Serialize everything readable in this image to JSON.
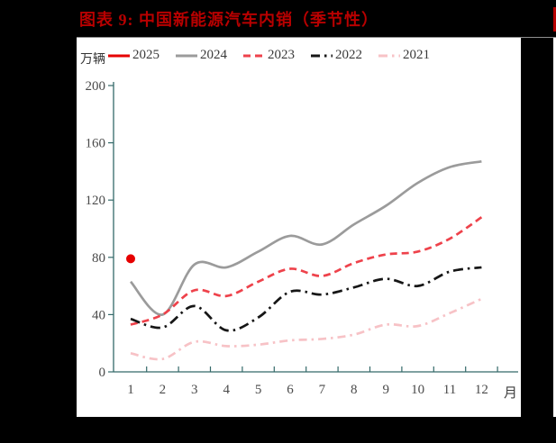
{
  "title": {
    "text": "图表 9: 中国新能源汽车内销（季节性）",
    "color": "#b80000"
  },
  "colors": {
    "page_background": "#000000",
    "panel_background": "#ffffff",
    "axis": "#346969",
    "tick_label": "#4a4a4a",
    "legend_text": "#3a3a3a"
  },
  "chart_data": {
    "type": "line",
    "title": "图表 9: 中国新能源汽车内销（季节性）",
    "unit_label": "万辆",
    "x_axis_label": "月",
    "categories": [
      "1",
      "2",
      "3",
      "4",
      "5",
      "6",
      "7",
      "8",
      "9",
      "10",
      "11",
      "12"
    ],
    "ylim": [
      0,
      200
    ],
    "yticks": [
      0,
      40,
      80,
      120,
      160,
      200
    ],
    "grid": false,
    "legend_position": "top",
    "series": [
      {
        "name": "2025",
        "color": "#e60000",
        "style": "point",
        "dash": "",
        "values": [
          79
        ]
      },
      {
        "name": "2024",
        "color": "#9b9b9b",
        "style": "solid",
        "dash": "",
        "values": [
          63,
          40,
          75,
          73,
          84,
          95,
          89,
          103,
          116,
          132,
          143,
          147
        ]
      },
      {
        "name": "2023",
        "color": "#ee424b",
        "style": "dashed",
        "dash": "8 5",
        "values": [
          33,
          40,
          57,
          53,
          63,
          72,
          67,
          76,
          82,
          84,
          93,
          108
        ]
      },
      {
        "name": "2022",
        "color": "#161616",
        "style": "dashdot",
        "dash": "11 5 2.5 5",
        "values": [
          37,
          31,
          46,
          29,
          38,
          56,
          54,
          59,
          65,
          60,
          70,
          73
        ]
      },
      {
        "name": "2021",
        "color": "#f7c2c6",
        "style": "dashdot",
        "dash": "9 5 2.5 5",
        "values": [
          13,
          9,
          21,
          18,
          19,
          22,
          23,
          26,
          33,
          32,
          41,
          51
        ]
      }
    ]
  }
}
